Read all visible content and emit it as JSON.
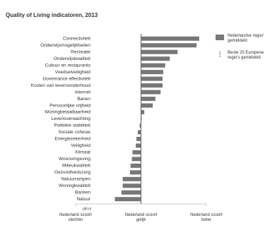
{
  "chart_data": {
    "type": "barh",
    "title": "Quality of Living indicatoren, 2013",
    "categories": [
      "Connectiviteit",
      "Onderwijsmogelijkheden",
      "Recreatie",
      "Onderwijskwaliteit",
      "Cultuur en restaurants",
      "Voedselveiligheid",
      "Governance effectiviteit",
      "Kosten van levensonderhoud",
      "Internet",
      "Banen",
      "Persoonlijke vrijheid",
      "Woningbetaalbaarheid",
      "Levensverwachting",
      "Politieke stabiliteit",
      "Sociale cohesie",
      "Energiezekerheid",
      "Veiligheid",
      "Klimaat",
      "Woonomgeving",
      "Milieukwaliteit",
      "Gezondheidszorg",
      "Natuurrampen",
      "Woningkwaliteit",
      "Banken",
      "Natuur"
    ],
    "series": [
      {
        "name": "Nederlandse regio/ gemiddeld",
        "color": "#777777",
        "values": [
          0.89,
          0.85,
          0.56,
          0.44,
          0.37,
          0.34,
          0.33,
          0.33,
          0.3,
          0.22,
          0.18,
          0.05,
          0.01,
          -0.02,
          -0.05,
          -0.07,
          -0.08,
          -0.13,
          -0.14,
          -0.16,
          -0.17,
          -0.28,
          -0.28,
          -0.3,
          -0.4
        ]
      }
    ],
    "reference": {
      "name": "Beste 25 Europese regio's gemiddeld"
    },
    "xlim": [
      -1,
      1
    ],
    "xticks": [
      {
        "value": -1,
        "label": "Nederland scoort slechter"
      },
      {
        "value": 0,
        "label": "Nederland scoort gelijk"
      },
      {
        "value": 1,
        "label": "Nederland scoort beter"
      }
    ],
    "source": "pbl.nl"
  }
}
